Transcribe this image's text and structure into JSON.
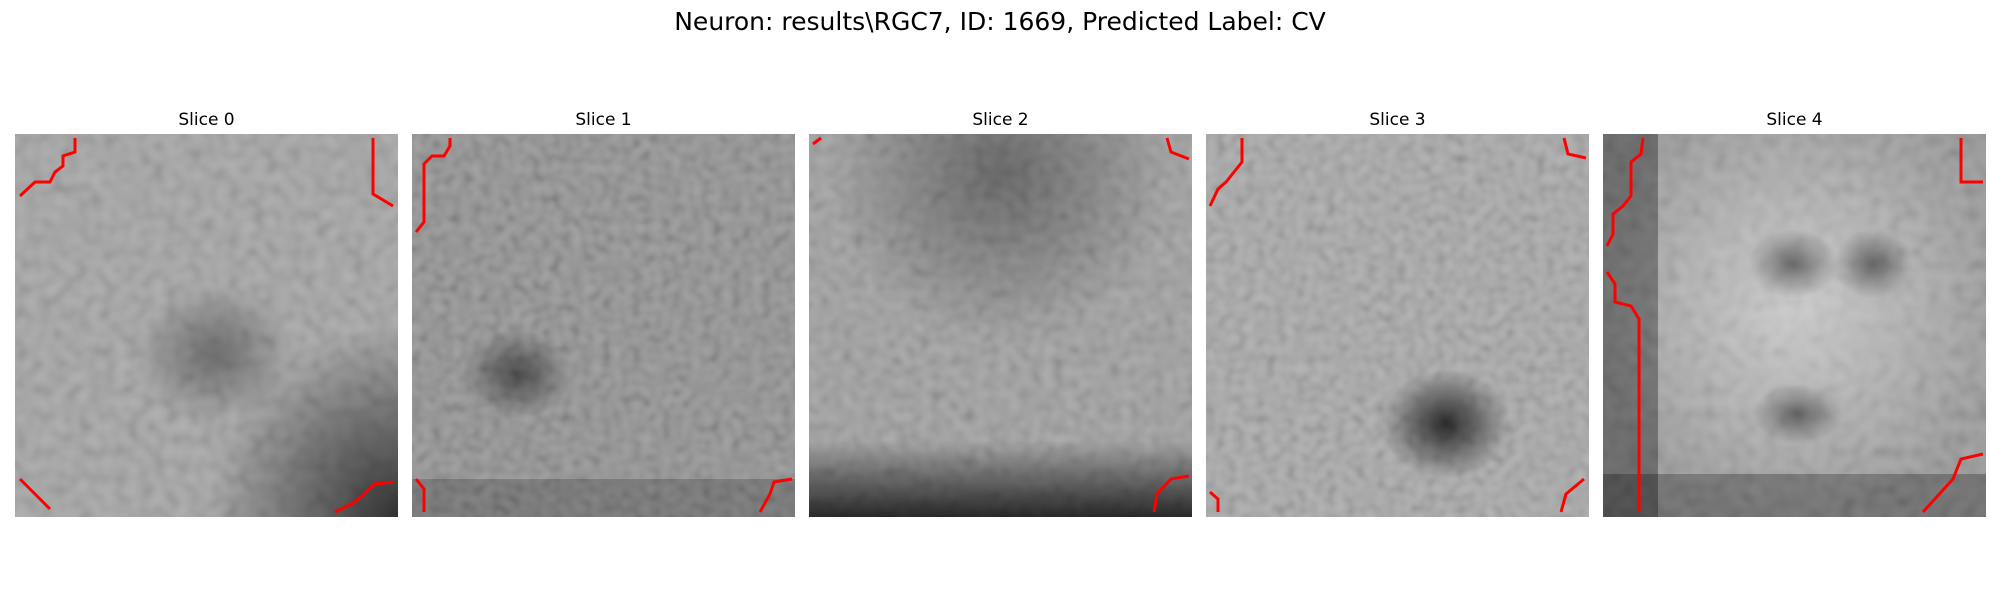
{
  "figure": {
    "title": "Neuron: results\\RGC7, ID: 1669, Predicted Label: CV"
  },
  "panels": [
    {
      "title": "Slice 0"
    },
    {
      "title": "Slice 1"
    },
    {
      "title": "Slice 2"
    },
    {
      "title": "Slice 3"
    },
    {
      "title": "Slice 4"
    }
  ],
  "colors": {
    "contour": "#ff0000",
    "colormap": "grayscale"
  }
}
